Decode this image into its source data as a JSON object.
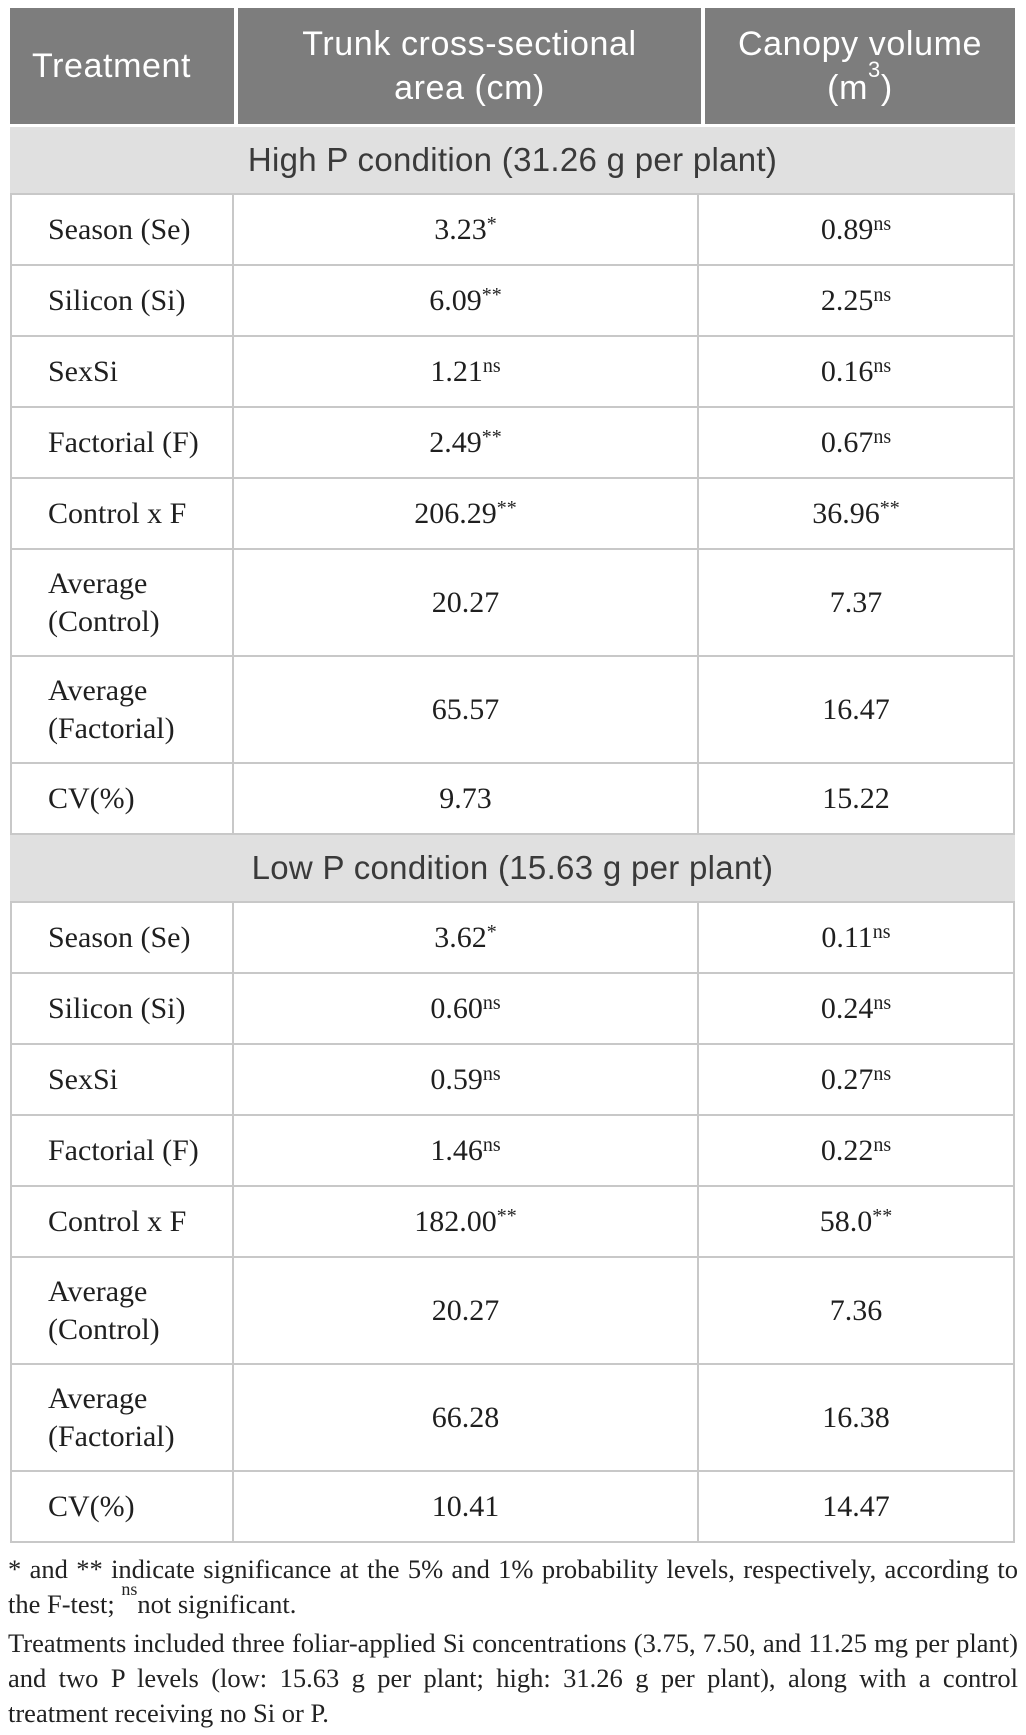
{
  "table": {
    "header": {
      "col1": "Treatment",
      "col2_line1": "Trunk cross-sectional",
      "col2_line2": "area (cm)",
      "col3_line1": "Canopy volume",
      "col3_line2_pre": "(m",
      "col3_sup": "3",
      "col3_line2_post": ")"
    },
    "sections": [
      {
        "band": "High P condition (31.26 g per plant)",
        "rows": [
          {
            "label": "Season (Se)",
            "tcsa": {
              "v": "3.23",
              "sup": "*"
            },
            "cv": {
              "v": "0.89",
              "sup": "ns"
            }
          },
          {
            "label": "Silicon (Si)",
            "tcsa": {
              "v": "6.09",
              "sup": "**"
            },
            "cv": {
              "v": "2.25",
              "sup": "ns"
            }
          },
          {
            "label": "SexSi",
            "tcsa": {
              "v": "1.21",
              "sup": "ns"
            },
            "cv": {
              "v": "0.16",
              "sup": "ns"
            }
          },
          {
            "label": "Factorial (F)",
            "tcsa": {
              "v": "2.49",
              "sup": "**"
            },
            "cv": {
              "v": "0.67",
              "sup": "ns"
            }
          },
          {
            "label": "Control x F",
            "tcsa": {
              "v": "206.29",
              "sup": "**"
            },
            "cv": {
              "v": "36.96",
              "sup": "**"
            }
          },
          {
            "label": "Average (Control)",
            "tcsa": {
              "v": "20.27"
            },
            "cv": {
              "v": "7.37"
            }
          },
          {
            "label": "Average (Factorial)",
            "tcsa": {
              "v": "65.57"
            },
            "cv": {
              "v": "16.47"
            }
          },
          {
            "label": "CV(%)",
            "tcsa": {
              "v": "9.73"
            },
            "cv": {
              "v": "15.22"
            }
          }
        ]
      },
      {
        "band": "Low P condition (15.63 g per plant)",
        "rows": [
          {
            "label": "Season (Se)",
            "tcsa": {
              "v": "3.62",
              "sup": "*"
            },
            "cv": {
              "v": "0.11",
              "sup": "ns"
            }
          },
          {
            "label": "Silicon (Si)",
            "tcsa": {
              "v": "0.60",
              "sup": "ns"
            },
            "cv": {
              "v": "0.24",
              "sup": "ns"
            }
          },
          {
            "label": "SexSi",
            "tcsa": {
              "v": "0.59",
              "sup": "ns"
            },
            "cv": {
              "v": "0.27",
              "sup": "ns"
            }
          },
          {
            "label": "Factorial (F)",
            "tcsa": {
              "v": "1.46",
              "sup": "ns"
            },
            "cv": {
              "v": "0.22",
              "sup": "ns"
            }
          },
          {
            "label": "Control x F",
            "tcsa": {
              "v": "182.00",
              "sup": "**"
            },
            "cv": {
              "v": "58.0",
              "sup": "**"
            }
          },
          {
            "label": "Average (Control)",
            "tcsa": {
              "v": "20.27"
            },
            "cv": {
              "v": "7.36"
            }
          },
          {
            "label": "Average (Factorial)",
            "tcsa": {
              "v": "66.28"
            },
            "cv": {
              "v": "16.38"
            }
          },
          {
            "label": "CV(%)",
            "tcsa": {
              "v": "10.41"
            },
            "cv": {
              "v": "14.47"
            }
          }
        ]
      }
    ]
  },
  "notes": {
    "note1_pre": "* and ** indicate significance at the 5% and 1% probability levels, respectively, according to the F-test; ",
    "note1_sup": "ns",
    "note1_post": "not significant.",
    "note2": "Treatments included three foliar-applied Si concentrations (3.75, 7.50, and 11.25 mg per plant) and two P levels (low: 15.63 g per plant; high: 31.26 g per plant), along with a control treatment receiving no Si or P."
  },
  "colors": {
    "header_bg": "#7d7d7d",
    "header_text": "#ffffff",
    "band_bg": "#e0e0e0",
    "border": "#c8c8c8",
    "body_text": "#1f1f1f"
  }
}
